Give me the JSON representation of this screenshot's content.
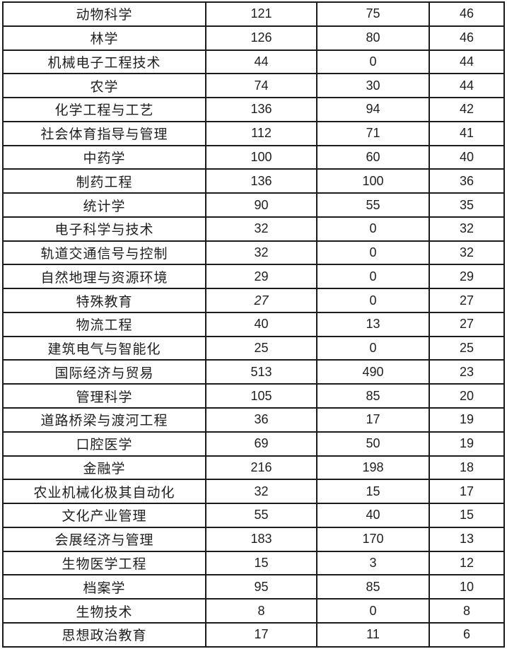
{
  "table": {
    "description": "Table of academic majors with three numeric value columns",
    "columns": [
      "major",
      "c1",
      "c2",
      "c3"
    ],
    "rows": [
      {
        "major": "动物科学",
        "c1": "121",
        "c2": "75",
        "c3": "46"
      },
      {
        "major": "林学",
        "c1": "126",
        "c2": "80",
        "c3": "46"
      },
      {
        "major": "机械电子工程技术",
        "c1": "44",
        "c2": "0",
        "c3": "44"
      },
      {
        "major": "农学",
        "c1": "74",
        "c2": "30",
        "c3": "44"
      },
      {
        "major": "化学工程与工艺",
        "c1": "136",
        "c2": "94",
        "c3": "42"
      },
      {
        "major": "社会体育指导与管理",
        "c1": "112",
        "c2": "71",
        "c3": "41"
      },
      {
        "major": "中药学",
        "c1": "100",
        "c2": "60",
        "c3": "40"
      },
      {
        "major": "制药工程",
        "c1": "136",
        "c2": "100",
        "c3": "36"
      },
      {
        "major": "统计学",
        "c1": "90",
        "c2": "55",
        "c3": "35"
      },
      {
        "major": "电子科学与技术",
        "c1": "32",
        "c2": "0",
        "c3": "32"
      },
      {
        "major": "轨道交通信号与控制",
        "c1": "32",
        "c2": "0",
        "c3": "32"
      },
      {
        "major": "自然地理与资源环境",
        "c1": "29",
        "c2": "0",
        "c3": "29"
      },
      {
        "major": "特殊教育",
        "c1": "27",
        "c2": "0",
        "c3": "27",
        "c1_italic": true
      },
      {
        "major": "物流工程",
        "c1": "40",
        "c2": "13",
        "c3": "27"
      },
      {
        "major": "建筑电气与智能化",
        "c1": "25",
        "c2": "0",
        "c3": "25"
      },
      {
        "major": "国际经济与贸易",
        "c1": "513",
        "c2": "490",
        "c3": "23"
      },
      {
        "major": "管理科学",
        "c1": "105",
        "c2": "85",
        "c3": "20"
      },
      {
        "major": "道路桥梁与渡河工程",
        "c1": "36",
        "c2": "17",
        "c3": "19"
      },
      {
        "major": "口腔医学",
        "c1": "69",
        "c2": "50",
        "c3": "19"
      },
      {
        "major": "金融学",
        "c1": "216",
        "c2": "198",
        "c3": "18"
      },
      {
        "major": "农业机械化极其自动化",
        "c1": "32",
        "c2": "15",
        "c3": "17"
      },
      {
        "major": "文化产业管理",
        "c1": "55",
        "c2": "40",
        "c3": "15"
      },
      {
        "major": "会展经济与管理",
        "c1": "183",
        "c2": "170",
        "c3": "13"
      },
      {
        "major": "生物医学工程",
        "c1": "15",
        "c2": "3",
        "c3": "12"
      },
      {
        "major": "档案学",
        "c1": "95",
        "c2": "85",
        "c3": "10"
      },
      {
        "major": "生物技术",
        "c1": "8",
        "c2": "0",
        "c3": "8"
      },
      {
        "major": "思想政治教育",
        "c1": "17",
        "c2": "11",
        "c3": "6"
      }
    ],
    "border_color": "#1b1b1b",
    "text_color": "#1e1e1e",
    "background_color": "#ffffff"
  }
}
